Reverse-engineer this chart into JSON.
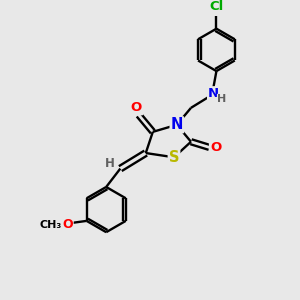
{
  "background_color": "#e8e8e8",
  "bond_color": "#000000",
  "atom_colors": {
    "O": "#ff0000",
    "N": "#0000ee",
    "S": "#b8b800",
    "Cl": "#00aa00",
    "C": "#000000",
    "H": "#606060"
  },
  "figsize": [
    3.0,
    3.0
  ],
  "dpi": 100,
  "xlim": [
    0,
    10
  ],
  "ylim": [
    0,
    10
  ]
}
